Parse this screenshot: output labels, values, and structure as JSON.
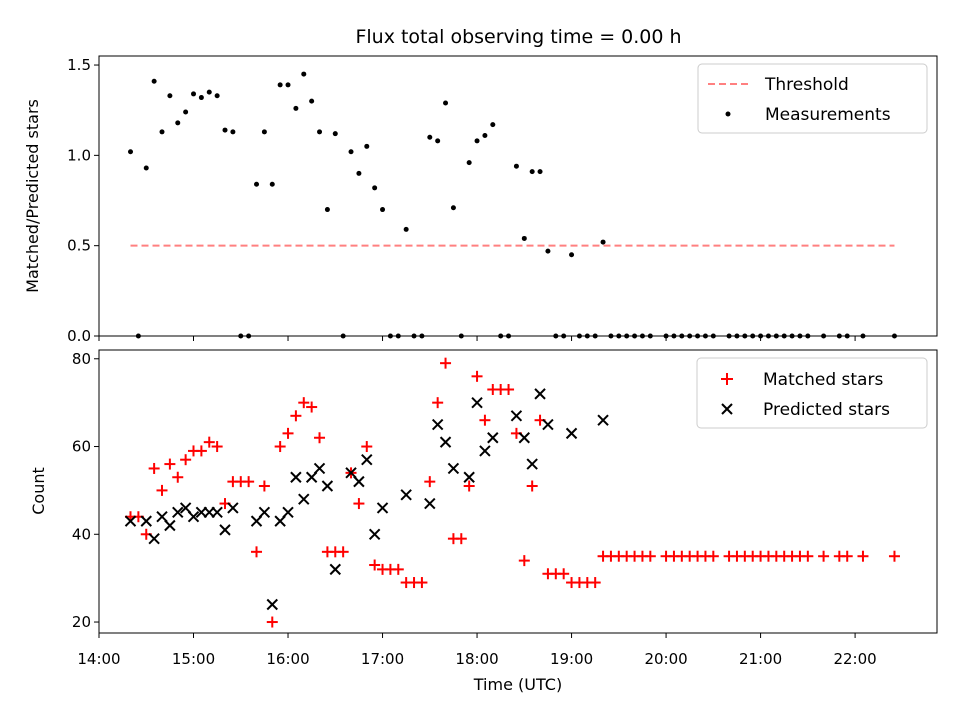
{
  "chart_data": [
    {
      "type": "scatter",
      "title": "Flux total observing time = 0.00 h",
      "xlabel": "",
      "ylabel": "Matched/Predicted stars",
      "xlim": [
        "14:00",
        "22:52"
      ],
      "ylim": [
        0,
        1.55
      ],
      "x_ticks": [
        "14:00",
        "15:00",
        "16:00",
        "17:00",
        "18:00",
        "19:00",
        "20:00",
        "21:00",
        "22:00"
      ],
      "y_ticks": [
        "0.0",
        "0.5",
        "1.0",
        "1.5"
      ],
      "legend_position": "upper right",
      "threshold": {
        "name": "Threshold",
        "y": 0.5,
        "x_start": "14:20",
        "x_end": "22:25",
        "color": "#ff8080",
        "style": "dashed"
      },
      "series": [
        {
          "name": "Measurements",
          "color": "#000000",
          "marker": "dot",
          "points": [
            [
              "14:20",
              1.02
            ],
            [
              "14:25",
              0.0
            ],
            [
              "14:30",
              0.93
            ],
            [
              "14:35",
              1.41
            ],
            [
              "14:40",
              1.13
            ],
            [
              "14:45",
              1.33
            ],
            [
              "14:50",
              1.18
            ],
            [
              "14:55",
              1.24
            ],
            [
              "15:00",
              1.34
            ],
            [
              "15:05",
              1.32
            ],
            [
              "15:10",
              1.35
            ],
            [
              "15:15",
              1.33
            ],
            [
              "15:20",
              1.14
            ],
            [
              "15:25",
              1.13
            ],
            [
              "15:30",
              0.0
            ],
            [
              "15:35",
              0.0
            ],
            [
              "15:40",
              0.84
            ],
            [
              "15:45",
              1.13
            ],
            [
              "15:50",
              0.84
            ],
            [
              "15:55",
              1.39
            ],
            [
              "16:00",
              1.39
            ],
            [
              "16:05",
              1.26
            ],
            [
              "16:10",
              1.45
            ],
            [
              "16:15",
              1.3
            ],
            [
              "16:20",
              1.13
            ],
            [
              "16:25",
              0.7
            ],
            [
              "16:30",
              1.12
            ],
            [
              "16:35",
              0.0
            ],
            [
              "16:40",
              1.02
            ],
            [
              "16:45",
              0.9
            ],
            [
              "16:50",
              1.05
            ],
            [
              "16:55",
              0.82
            ],
            [
              "17:00",
              0.7
            ],
            [
              "17:05",
              0.0
            ],
            [
              "17:10",
              0.0
            ],
            [
              "17:15",
              0.59
            ],
            [
              "17:20",
              0.0
            ],
            [
              "17:25",
              0.0
            ],
            [
              "17:30",
              1.1
            ],
            [
              "17:35",
              1.08
            ],
            [
              "17:40",
              1.29
            ],
            [
              "17:45",
              0.71
            ],
            [
              "17:50",
              0.0
            ],
            [
              "17:55",
              0.96
            ],
            [
              "18:00",
              1.08
            ],
            [
              "18:05",
              1.11
            ],
            [
              "18:10",
              1.17
            ],
            [
              "18:15",
              0.0
            ],
            [
              "18:20",
              0.0
            ],
            [
              "18:25",
              0.94
            ],
            [
              "18:30",
              0.54
            ],
            [
              "18:35",
              0.91
            ],
            [
              "18:40",
              0.91
            ],
            [
              "18:45",
              0.47
            ],
            [
              "18:50",
              0.0
            ],
            [
              "18:55",
              0.0
            ],
            [
              "19:00",
              0.45
            ],
            [
              "19:05",
              0.0
            ],
            [
              "19:10",
              0.0
            ],
            [
              "19:15",
              0.0
            ],
            [
              "19:20",
              0.52
            ],
            [
              "19:25",
              0.0
            ],
            [
              "19:30",
              0.0
            ],
            [
              "19:35",
              0.0
            ],
            [
              "19:40",
              0.0
            ],
            [
              "19:45",
              0.0
            ],
            [
              "19:50",
              0.0
            ],
            [
              "20:00",
              0.0
            ],
            [
              "20:05",
              0.0
            ],
            [
              "20:10",
              0.0
            ],
            [
              "20:15",
              0.0
            ],
            [
              "20:20",
              0.0
            ],
            [
              "20:25",
              0.0
            ],
            [
              "20:30",
              0.0
            ],
            [
              "20:40",
              0.0
            ],
            [
              "20:45",
              0.0
            ],
            [
              "20:50",
              0.0
            ],
            [
              "20:55",
              0.0
            ],
            [
              "21:00",
              0.0
            ],
            [
              "21:05",
              0.0
            ],
            [
              "21:10",
              0.0
            ],
            [
              "21:15",
              0.0
            ],
            [
              "21:20",
              0.0
            ],
            [
              "21:25",
              0.0
            ],
            [
              "21:30",
              0.0
            ],
            [
              "21:40",
              0.0
            ],
            [
              "21:50",
              0.0
            ],
            [
              "21:55",
              0.0
            ],
            [
              "22:05",
              0.0
            ],
            [
              "22:25",
              0.0
            ]
          ]
        }
      ]
    },
    {
      "type": "scatter",
      "title": "",
      "xlabel": "Time (UTC)",
      "ylabel": "Count",
      "xlim": [
        "14:00",
        "22:52"
      ],
      "ylim": [
        17.5,
        82
      ],
      "x_ticks": [
        "14:00",
        "15:00",
        "16:00",
        "17:00",
        "18:00",
        "19:00",
        "20:00",
        "21:00",
        "22:00"
      ],
      "y_ticks": [
        "20",
        "40",
        "60",
        "80"
      ],
      "legend_position": "upper right",
      "series": [
        {
          "name": "Matched stars",
          "color": "#ff0000",
          "marker": "plus",
          "points": [
            [
              "14:20",
              44
            ],
            [
              "14:25",
              44
            ],
            [
              "14:30",
              40
            ],
            [
              "14:35",
              55
            ],
            [
              "14:40",
              50
            ],
            [
              "14:45",
              56
            ],
            [
              "14:50",
              53
            ],
            [
              "14:55",
              57
            ],
            [
              "15:00",
              59
            ],
            [
              "15:05",
              59
            ],
            [
              "15:10",
              61
            ],
            [
              "15:15",
              60
            ],
            [
              "15:20",
              47
            ],
            [
              "15:25",
              52
            ],
            [
              "15:30",
              52
            ],
            [
              "15:35",
              52
            ],
            [
              "15:40",
              36
            ],
            [
              "15:45",
              51
            ],
            [
              "15:50",
              20
            ],
            [
              "15:55",
              60
            ],
            [
              "16:00",
              63
            ],
            [
              "16:05",
              67
            ],
            [
              "16:10",
              70
            ],
            [
              "16:15",
              69
            ],
            [
              "16:20",
              62
            ],
            [
              "16:25",
              36
            ],
            [
              "16:30",
              36
            ],
            [
              "16:35",
              36
            ],
            [
              "16:40",
              54
            ],
            [
              "16:45",
              47
            ],
            [
              "16:50",
              60
            ],
            [
              "16:55",
              33
            ],
            [
              "17:00",
              32
            ],
            [
              "17:05",
              32
            ],
            [
              "17:10",
              32
            ],
            [
              "17:15",
              29
            ],
            [
              "17:20",
              29
            ],
            [
              "17:25",
              29
            ],
            [
              "17:30",
              52
            ],
            [
              "17:35",
              70
            ],
            [
              "17:40",
              79
            ],
            [
              "17:45",
              39
            ],
            [
              "17:50",
              39
            ],
            [
              "17:55",
              51
            ],
            [
              "18:00",
              76
            ],
            [
              "18:05",
              66
            ],
            [
              "18:10",
              73
            ],
            [
              "18:15",
              73
            ],
            [
              "18:20",
              73
            ],
            [
              "18:25",
              63
            ],
            [
              "18:30",
              34
            ],
            [
              "18:35",
              51
            ],
            [
              "18:40",
              66
            ],
            [
              "18:45",
              31
            ],
            [
              "18:50",
              31
            ],
            [
              "18:55",
              31
            ],
            [
              "19:00",
              29
            ],
            [
              "19:05",
              29
            ],
            [
              "19:10",
              29
            ],
            [
              "19:15",
              29
            ],
            [
              "19:20",
              35
            ],
            [
              "19:25",
              35
            ],
            [
              "19:30",
              35
            ],
            [
              "19:35",
              35
            ],
            [
              "19:40",
              35
            ],
            [
              "19:45",
              35
            ],
            [
              "19:50",
              35
            ],
            [
              "20:00",
              35
            ],
            [
              "20:05",
              35
            ],
            [
              "20:10",
              35
            ],
            [
              "20:15",
              35
            ],
            [
              "20:20",
              35
            ],
            [
              "20:25",
              35
            ],
            [
              "20:30",
              35
            ],
            [
              "20:40",
              35
            ],
            [
              "20:45",
              35
            ],
            [
              "20:50",
              35
            ],
            [
              "20:55",
              35
            ],
            [
              "21:00",
              35
            ],
            [
              "21:05",
              35
            ],
            [
              "21:10",
              35
            ],
            [
              "21:15",
              35
            ],
            [
              "21:20",
              35
            ],
            [
              "21:25",
              35
            ],
            [
              "21:30",
              35
            ],
            [
              "21:40",
              35
            ],
            [
              "21:50",
              35
            ],
            [
              "21:55",
              35
            ],
            [
              "22:05",
              35
            ],
            [
              "22:25",
              35
            ]
          ]
        },
        {
          "name": "Predicted stars",
          "color": "#000000",
          "marker": "x",
          "points": [
            [
              "14:20",
              43
            ],
            [
              "14:30",
              43
            ],
            [
              "14:35",
              39
            ],
            [
              "14:40",
              44
            ],
            [
              "14:45",
              42
            ],
            [
              "14:50",
              45
            ],
            [
              "14:55",
              46
            ],
            [
              "15:00",
              44
            ],
            [
              "15:05",
              45
            ],
            [
              "15:10",
              45
            ],
            [
              "15:15",
              45
            ],
            [
              "15:20",
              41
            ],
            [
              "15:25",
              46
            ],
            [
              "15:40",
              43
            ],
            [
              "15:45",
              45
            ],
            [
              "15:50",
              24
            ],
            [
              "15:55",
              43
            ],
            [
              "16:00",
              45
            ],
            [
              "16:05",
              53
            ],
            [
              "16:10",
              48
            ],
            [
              "16:15",
              53
            ],
            [
              "16:20",
              55
            ],
            [
              "16:25",
              51
            ],
            [
              "16:30",
              32
            ],
            [
              "16:40",
              54
            ],
            [
              "16:45",
              52
            ],
            [
              "16:50",
              57
            ],
            [
              "16:55",
              40
            ],
            [
              "17:00",
              46
            ],
            [
              "17:15",
              49
            ],
            [
              "17:30",
              47
            ],
            [
              "17:35",
              65
            ],
            [
              "17:40",
              61
            ],
            [
              "17:45",
              55
            ],
            [
              "17:55",
              53
            ],
            [
              "18:00",
              70
            ],
            [
              "18:05",
              59
            ],
            [
              "18:10",
              62
            ],
            [
              "18:25",
              67
            ],
            [
              "18:30",
              62
            ],
            [
              "18:35",
              56
            ],
            [
              "18:40",
              72
            ],
            [
              "18:45",
              65
            ],
            [
              "19:00",
              63
            ],
            [
              "19:20",
              66
            ]
          ]
        }
      ]
    }
  ]
}
